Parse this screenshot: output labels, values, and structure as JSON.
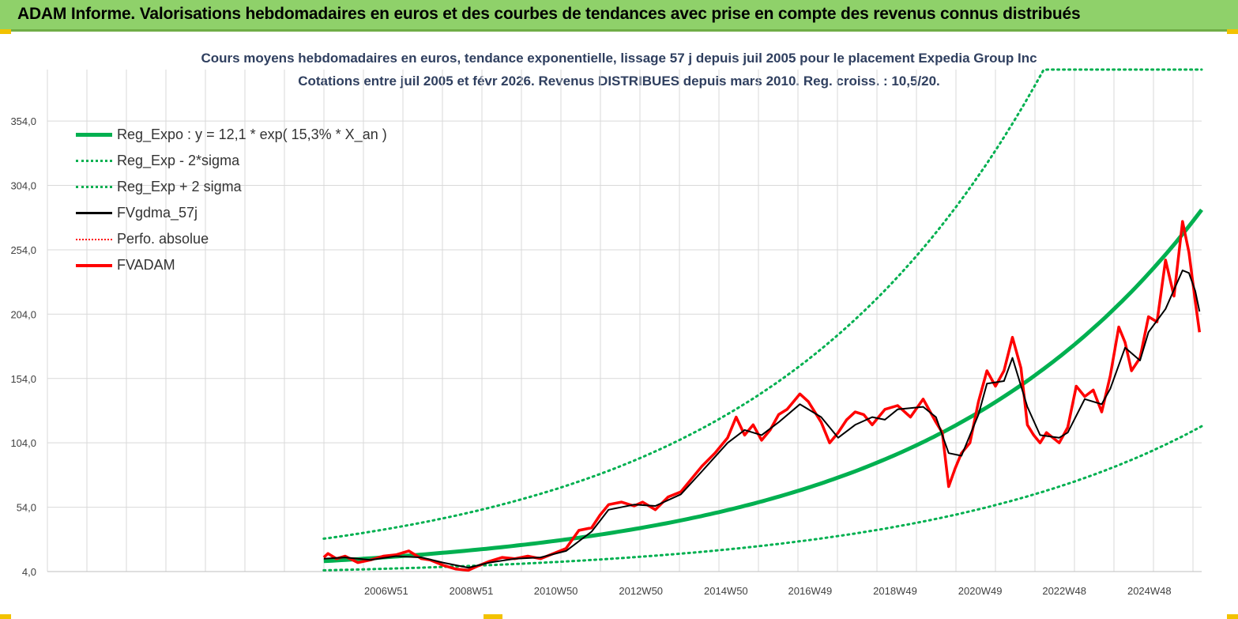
{
  "banner": {
    "title": "ADAM Informe. Valorisations hebdomadaires en euros et des courbes de tendances avec prise en compte des revenus connus distribués"
  },
  "chart": {
    "title_line1": "Cours moyens hebdomadaires en euros, tendance exponentielle, lissage 57 j depuis juil 2005 pour le placement Expedia Group Inc",
    "title_line2": "Cotations entre juil 2005 et févr 2026.  Revenus DISTRIBUES depuis mars 2010. Reg. croiss. : 10,5/20."
  },
  "legend": [
    {
      "label": "Reg_Expo : y = 12,1 * exp( 15,3% *  X_an )",
      "style": "regexpo"
    },
    {
      "label": "Reg_Exp - 2*sigma",
      "style": "dot"
    },
    {
      "label": "Reg_Exp + 2 sigma",
      "style": "dot"
    },
    {
      "label": "FVgdma_57j",
      "style": "black"
    },
    {
      "label": "Perfo. absolue",
      "style": "reddot"
    },
    {
      "label": "FVADAM",
      "style": "red"
    }
  ],
  "colors": {
    "banner": "#8fd16a",
    "reg_expo": "#00b050",
    "fvgdma": "#000000",
    "fvadam": "#ff0000",
    "title_text": "#2f3f5f"
  },
  "chart_data": {
    "type": "line",
    "ylim": [
      4,
      394
    ],
    "y_ticks": [
      "4,0",
      "54,0",
      "104,0",
      "154,0",
      "204,0",
      "254,0",
      "304,0",
      "354,0"
    ],
    "x_range": [
      1999.0,
      2026.15
    ],
    "x_ticks": [
      {
        "label": "2006W51",
        "x": 2006.97
      },
      {
        "label": "2008W51",
        "x": 2008.97
      },
      {
        "label": "2010W50",
        "x": 2010.96
      },
      {
        "label": "2012W50",
        "x": 2012.96
      },
      {
        "label": "2014W50",
        "x": 2014.96
      },
      {
        "label": "2016W49",
        "x": 2016.94
      },
      {
        "label": "2018W49",
        "x": 2018.94
      },
      {
        "label": "2020W49",
        "x": 2020.94
      },
      {
        "label": "2022W48",
        "x": 2022.92
      },
      {
        "label": "2024W48",
        "x": 2024.92
      }
    ],
    "grid": true,
    "legend_position": "top-left",
    "regression": {
      "a": 12.1,
      "b": 0.153,
      "x0": 2005.5,
      "x_start": 2005.5,
      "x_end": 2026.15,
      "minus_factor": 0.41,
      "plus_factor": 2.44
    },
    "series": [
      {
        "name": "FVADAM",
        "x": [
          2005.5,
          2005.6,
          2005.8,
          2006.0,
          2006.3,
          2006.6,
          2006.9,
          2007.2,
          2007.5,
          2007.8,
          2008.0,
          2008.3,
          2008.6,
          2008.9,
          2009.1,
          2009.4,
          2009.7,
          2010.0,
          2010.3,
          2010.6,
          2010.9,
          2011.2,
          2011.5,
          2011.8,
          2012.0,
          2012.2,
          2012.5,
          2012.8,
          2013.0,
          2013.3,
          2013.6,
          2013.9,
          2014.1,
          2014.4,
          2014.7,
          2015.0,
          2015.2,
          2015.4,
          2015.6,
          2015.8,
          2016.0,
          2016.2,
          2016.4,
          2016.7,
          2016.9,
          2017.2,
          2017.4,
          2017.6,
          2017.8,
          2018.0,
          2018.2,
          2018.4,
          2018.7,
          2019.0,
          2019.3,
          2019.6,
          2019.9,
          2020.05,
          2020.2,
          2020.35,
          2020.5,
          2020.7,
          2020.9,
          2021.1,
          2021.3,
          2021.5,
          2021.7,
          2021.9,
          2022.05,
          2022.2,
          2022.35,
          2022.5,
          2022.8,
          2023.0,
          2023.2,
          2023.4,
          2023.6,
          2023.8,
          2024.0,
          2024.2,
          2024.35,
          2024.5,
          2024.7,
          2024.9,
          2025.1,
          2025.3,
          2025.5,
          2025.7,
          2025.85,
          2026.0,
          2026.1
        ],
        "values": [
          15,
          18,
          14,
          16,
          11,
          13,
          16,
          17,
          20,
          14,
          13,
          9,
          6,
          5,
          8,
          12,
          15,
          14,
          16,
          14,
          18,
          22,
          36,
          38,
          48,
          56,
          58,
          55,
          58,
          52,
          62,
          66,
          74,
          86,
          96,
          108,
          124,
          110,
          118,
          106,
          114,
          126,
          130,
          142,
          136,
          120,
          104,
          112,
          122,
          128,
          126,
          118,
          130,
          133,
          124,
          138,
          120,
          112,
          70,
          84,
          96,
          104,
          136,
          160,
          148,
          160,
          186,
          162,
          118,
          110,
          104,
          112,
          104,
          116,
          148,
          140,
          145,
          128,
          156,
          194,
          182,
          160,
          170,
          202,
          198,
          246,
          218,
          276,
          252,
          214,
          190
        ]
      },
      {
        "name": "FVgdma_57j",
        "x": [
          2005.5,
          2006.0,
          2006.6,
          2007.2,
          2007.8,
          2008.3,
          2008.9,
          2009.4,
          2010.0,
          2010.6,
          2011.2,
          2011.8,
          2012.2,
          2012.8,
          2013.3,
          2013.9,
          2014.4,
          2015.0,
          2015.4,
          2015.8,
          2016.2,
          2016.7,
          2017.2,
          2017.6,
          2018.0,
          2018.4,
          2018.7,
          2019.0,
          2019.6,
          2019.9,
          2020.2,
          2020.5,
          2020.9,
          2021.1,
          2021.5,
          2021.7,
          2022.05,
          2022.35,
          2022.8,
          2023.0,
          2023.4,
          2023.8,
          2024.0,
          2024.35,
          2024.7,
          2024.9,
          2025.3,
          2025.7,
          2025.85,
          2026.0,
          2026.1
        ],
        "values": [
          14,
          15,
          13,
          16,
          15,
          11,
          7,
          11,
          14,
          15,
          20,
          35,
          52,
          56,
          55,
          64,
          82,
          104,
          114,
          110,
          120,
          134,
          124,
          108,
          118,
          124,
          122,
          130,
          132,
          124,
          96,
          94,
          126,
          150,
          152,
          170,
          132,
          110,
          108,
          112,
          138,
          134,
          146,
          178,
          168,
          190,
          208,
          238,
          236,
          222,
          206
        ]
      }
    ]
  }
}
